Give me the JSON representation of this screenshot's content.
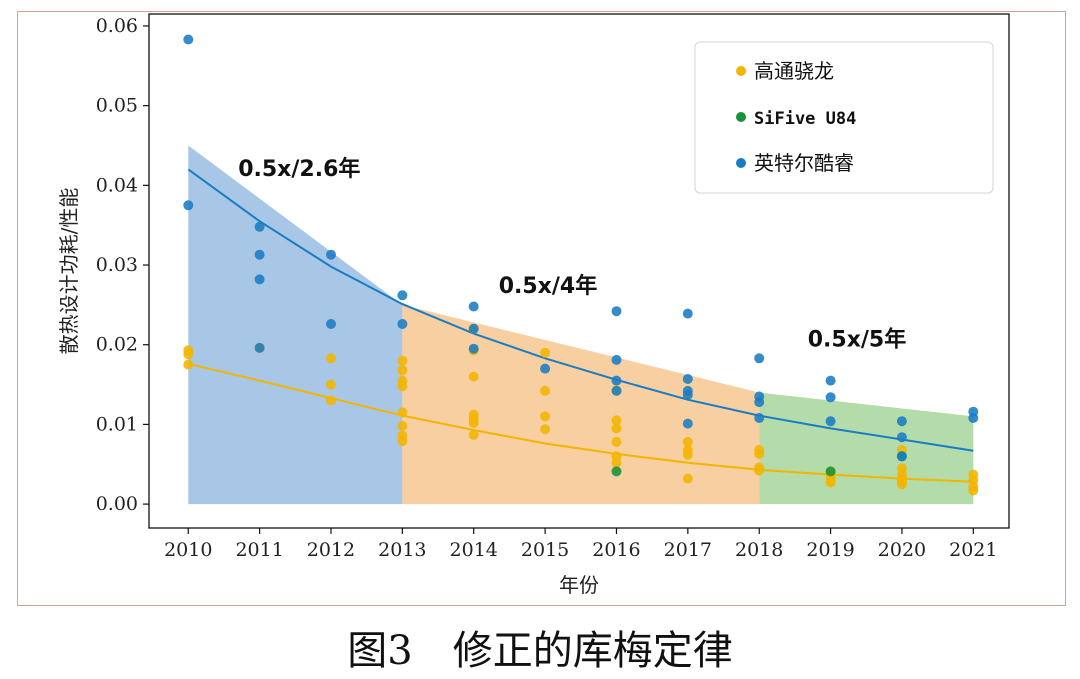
{
  "caption": "图3　修正的库梅定律",
  "chart_data": {
    "type": "scatter",
    "xlabel": "年份",
    "ylabel": "散热设计功耗/性能",
    "xlim": [
      2009.45,
      2021.5
    ],
    "ylim": [
      -0.003,
      0.0615
    ],
    "xticks": [
      "2010",
      "2011",
      "2012",
      "2013",
      "2014",
      "2015",
      "2016",
      "2017",
      "2018",
      "2019",
      "2020",
      "2021"
    ],
    "yticks": [
      "0.00",
      "0.01",
      "0.02",
      "0.03",
      "0.04",
      "0.05",
      "0.06"
    ],
    "legend": {
      "position": "top-right"
    },
    "series": [
      {
        "name": "高通骁龙",
        "color": "#f2b500",
        "points": [
          [
            2010,
            0.0193
          ],
          [
            2010,
            0.0188
          ],
          [
            2010,
            0.0175
          ],
          [
            2011,
            0.0196
          ],
          [
            2012,
            0.0183
          ],
          [
            2012,
            0.015
          ],
          [
            2012,
            0.013
          ],
          [
            2013,
            0.018
          ],
          [
            2013,
            0.0168
          ],
          [
            2013,
            0.0155
          ],
          [
            2013,
            0.0148
          ],
          [
            2013,
            0.0115
          ],
          [
            2013,
            0.0098
          ],
          [
            2013,
            0.0086
          ],
          [
            2013,
            0.0079
          ],
          [
            2014,
            0.022
          ],
          [
            2014,
            0.0193
          ],
          [
            2014,
            0.016
          ],
          [
            2014,
            0.0112
          ],
          [
            2014,
            0.0107
          ],
          [
            2014,
            0.0102
          ],
          [
            2014,
            0.0087
          ],
          [
            2015,
            0.019
          ],
          [
            2015,
            0.0142
          ],
          [
            2015,
            0.011
          ],
          [
            2015,
            0.0094
          ],
          [
            2016,
            0.0143
          ],
          [
            2016,
            0.0105
          ],
          [
            2016,
            0.0095
          ],
          [
            2016,
            0.0078
          ],
          [
            2016,
            0.006
          ],
          [
            2016,
            0.0052
          ],
          [
            2017,
            0.0078
          ],
          [
            2017,
            0.0068
          ],
          [
            2017,
            0.0062
          ],
          [
            2017,
            0.0032
          ],
          [
            2018,
            0.0068
          ],
          [
            2018,
            0.0063
          ],
          [
            2018,
            0.0046
          ],
          [
            2018,
            0.0042
          ],
          [
            2019,
            0.004
          ],
          [
            2019,
            0.0035
          ],
          [
            2019,
            0.003
          ],
          [
            2019,
            0.0027
          ],
          [
            2020,
            0.0068
          ],
          [
            2020,
            0.0045
          ],
          [
            2020,
            0.0038
          ],
          [
            2020,
            0.0032
          ],
          [
            2020,
            0.0028
          ],
          [
            2020,
            0.0025
          ],
          [
            2021,
            0.0037
          ],
          [
            2021,
            0.003
          ],
          [
            2021,
            0.0022
          ],
          [
            2021,
            0.0017
          ]
        ],
        "trend": [
          [
            2010,
            0.0176
          ],
          [
            2011,
            0.0155
          ],
          [
            2012,
            0.0133
          ],
          [
            2013,
            0.0111
          ],
          [
            2014,
            0.0093
          ],
          [
            2015,
            0.0076
          ],
          [
            2016,
            0.0063
          ],
          [
            2017,
            0.0052
          ],
          [
            2018,
            0.0043
          ],
          [
            2019,
            0.0037
          ],
          [
            2020,
            0.0032
          ],
          [
            2021,
            0.0028
          ]
        ]
      },
      {
        "name": "SiFive U84",
        "color": "#17913a",
        "points": [
          [
            2016,
            0.0041
          ],
          [
            2019,
            0.0041
          ],
          [
            2020,
            0.006
          ]
        ]
      },
      {
        "name": "英特尔酷睿",
        "color": "#1a7cc4",
        "points": [
          [
            2010,
            0.0583
          ],
          [
            2010,
            0.0375
          ],
          [
            2011,
            0.0348
          ],
          [
            2011,
            0.0313
          ],
          [
            2011,
            0.0282
          ],
          [
            2011,
            0.0196
          ],
          [
            2012,
            0.0313
          ],
          [
            2012,
            0.0226
          ],
          [
            2013,
            0.0262
          ],
          [
            2013,
            0.0226
          ],
          [
            2014,
            0.0248
          ],
          [
            2014,
            0.022
          ],
          [
            2014,
            0.0195
          ],
          [
            2015,
            0.017
          ],
          [
            2016,
            0.0242
          ],
          [
            2016,
            0.0181
          ],
          [
            2016,
            0.0155
          ],
          [
            2016,
            0.0142
          ],
          [
            2017,
            0.0239
          ],
          [
            2017,
            0.0157
          ],
          [
            2017,
            0.0142
          ],
          [
            2017,
            0.0137
          ],
          [
            2017,
            0.0101
          ],
          [
            2018,
            0.0183
          ],
          [
            2018,
            0.0135
          ],
          [
            2018,
            0.0128
          ],
          [
            2018,
            0.0108
          ],
          [
            2019,
            0.0155
          ],
          [
            2019,
            0.0134
          ],
          [
            2019,
            0.0104
          ],
          [
            2020,
            0.0104
          ],
          [
            2020,
            0.0084
          ],
          [
            2020,
            0.006
          ],
          [
            2021,
            0.0116
          ],
          [
            2021,
            0.0108
          ]
        ],
        "trend": [
          [
            2010,
            0.042
          ],
          [
            2011,
            0.0355
          ],
          [
            2012,
            0.0298
          ],
          [
            2013,
            0.0251
          ],
          [
            2014,
            0.0214
          ],
          [
            2015,
            0.0183
          ],
          [
            2016,
            0.0156
          ],
          [
            2017,
            0.0131
          ],
          [
            2018,
            0.0111
          ],
          [
            2019,
            0.0095
          ],
          [
            2020,
            0.0081
          ],
          [
            2021,
            0.0067
          ]
        ]
      }
    ],
    "regions": [
      {
        "label": "0.5x/2.6年",
        "color": "#a8c6e6",
        "polygon": [
          [
            2010,
            0
          ],
          [
            2010,
            0.045
          ],
          [
            2013,
            0.025
          ],
          [
            2013,
            0
          ]
        ],
        "label_at": [
          2010.7,
          0.0412
        ]
      },
      {
        "label": "0.5x/4年",
        "color": "#f8cfa0",
        "polygon": [
          [
            2013,
            0
          ],
          [
            2013,
            0.025
          ],
          [
            2018,
            0.014
          ],
          [
            2018,
            0
          ]
        ],
        "label_at": [
          2014.35,
          0.0265
        ]
      },
      {
        "label": "0.5x/5年",
        "color": "#b4dcaa",
        "polygon": [
          [
            2018,
            0
          ],
          [
            2018,
            0.014
          ],
          [
            2021,
            0.011
          ],
          [
            2021,
            0
          ]
        ],
        "label_at": [
          2018.68,
          0.0198
        ]
      }
    ]
  }
}
